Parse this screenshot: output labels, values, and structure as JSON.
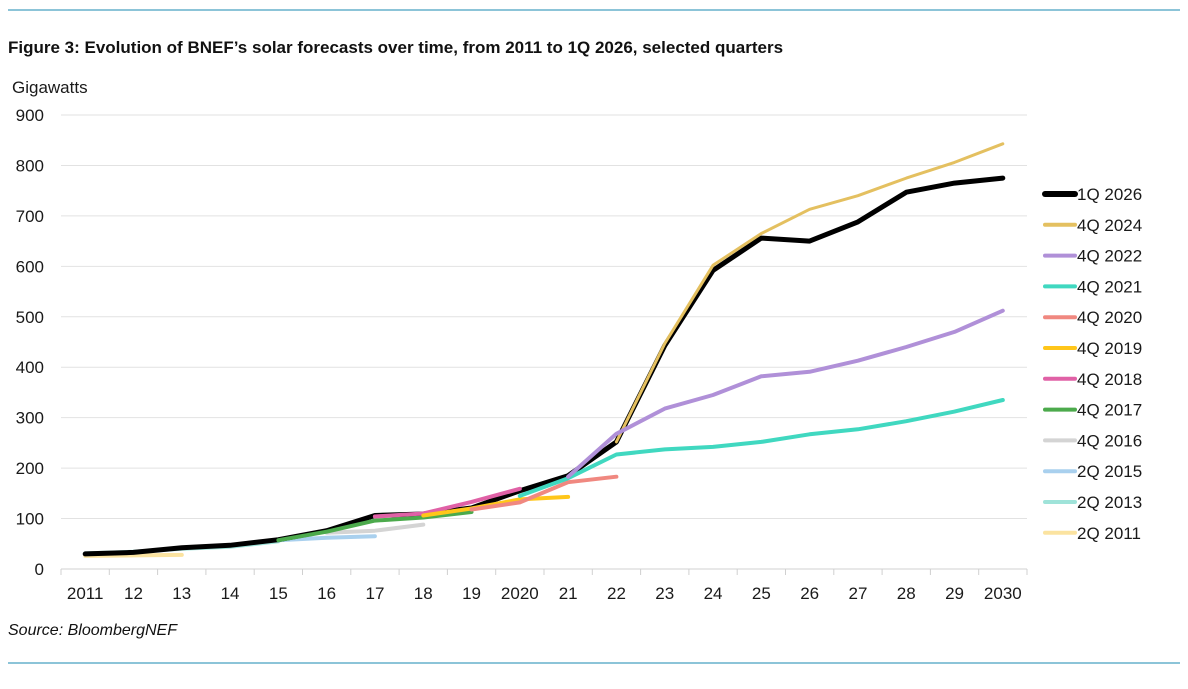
{
  "figure": {
    "title": "Figure 3:  Evolution of BNEF’s solar forecasts over time, from 2011 to 1Q 2026, selected quarters",
    "source": "Source: BloombergNEF"
  },
  "chart_data": {
    "type": "line",
    "title": "Figure 3:  Evolution of BNEF’s solar forecasts over time, from 2011 to 1Q 2026, selected quarters",
    "xlabel": "",
    "ylabel": "Gigawatts",
    "ylim": [
      0,
      900
    ],
    "yticks": [
      0,
      100,
      200,
      300,
      400,
      500,
      600,
      700,
      800,
      900
    ],
    "grid": true,
    "legend_position": "right",
    "categories": [
      "2011",
      "12",
      "13",
      "14",
      "15",
      "16",
      "17",
      "18",
      "19",
      "2020",
      "21",
      "22",
      "23",
      "24",
      "25",
      "26",
      "27",
      "28",
      "29",
      "2030"
    ],
    "series": [
      {
        "name": "2Q 2011",
        "color": "#fbe3a0",
        "width": 4,
        "values": [
          26,
          27,
          28,
          null,
          null,
          null,
          null,
          null,
          null,
          null,
          null,
          null,
          null,
          null,
          null,
          null,
          null,
          null,
          null,
          null
        ]
      },
      {
        "name": "2Q 2013",
        "color": "#9fe3d9",
        "width": 4,
        "values": [
          31,
          34,
          40,
          44,
          55,
          null,
          null,
          null,
          null,
          null,
          null,
          null,
          null,
          null,
          null,
          null,
          null,
          null,
          null,
          null
        ]
      },
      {
        "name": "2Q 2015",
        "color": "#a9d0ee",
        "width": 4,
        "values": [
          null,
          null,
          null,
          null,
          57,
          62,
          65,
          null,
          null,
          null,
          null,
          null,
          null,
          null,
          null,
          null,
          null,
          null,
          null,
          null
        ]
      },
      {
        "name": "4Q 2016",
        "color": "#d4d4d4",
        "width": 4,
        "values": [
          null,
          null,
          null,
          null,
          null,
          72,
          76,
          88,
          null,
          null,
          null,
          null,
          null,
          null,
          null,
          null,
          null,
          null,
          null,
          null
        ]
      },
      {
        "name": "4Q 2017",
        "color": "#4caa4c",
        "width": 4,
        "values": [
          null,
          null,
          null,
          null,
          57,
          74,
          96,
          102,
          113,
          null,
          null,
          null,
          null,
          null,
          null,
          null,
          null,
          null,
          null,
          null
        ]
      },
      {
        "name": "4Q 2018",
        "color": "#e061a6",
        "width": 4,
        "values": [
          null,
          null,
          null,
          null,
          null,
          null,
          104,
          110,
          133,
          159,
          null,
          null,
          null,
          null,
          null,
          null,
          null,
          null,
          null,
          null
        ]
      },
      {
        "name": "4Q 2019",
        "color": "#ffc61a",
        "width": 4,
        "values": [
          null,
          null,
          null,
          null,
          null,
          null,
          null,
          106,
          120,
          138,
          143,
          null,
          null,
          null,
          null,
          null,
          null,
          null,
          null,
          null
        ]
      },
      {
        "name": "4Q 2020",
        "color": "#f08880",
        "width": 4,
        "values": [
          null,
          null,
          null,
          null,
          null,
          null,
          null,
          null,
          118,
          132,
          172,
          183,
          null,
          null,
          null,
          null,
          null,
          null,
          null,
          null
        ]
      },
      {
        "name": "4Q 2021",
        "color": "#40d8c0",
        "width": 4,
        "values": [
          null,
          null,
          null,
          null,
          null,
          null,
          null,
          null,
          null,
          145,
          180,
          227,
          237,
          242,
          252,
          267,
          277,
          293,
          312,
          335
        ]
      },
      {
        "name": "4Q 2022",
        "color": "#b090d8",
        "width": 4,
        "values": [
          null,
          null,
          null,
          null,
          null,
          null,
          null,
          null,
          null,
          null,
          183,
          268,
          318,
          345,
          382,
          391,
          413,
          440,
          470,
          512
        ]
      },
      {
        "name": "4Q 2024",
        "color": "#e4c060",
        "width": 3,
        "values": [
          null,
          null,
          null,
          null,
          null,
          null,
          null,
          null,
          null,
          null,
          null,
          252,
          447,
          602,
          665,
          713,
          740,
          775,
          806,
          843
        ]
      },
      {
        "name": "1Q 2026",
        "color": "#000000",
        "width": 5,
        "values": [
          30,
          33,
          42,
          47,
          58,
          76,
          106,
          109,
          121,
          155,
          185,
          252,
          443,
          592,
          656,
          650,
          688,
          747,
          765,
          775
        ]
      }
    ],
    "draw_order": [
      "2Q 2011",
      "2Q 2013",
      "2Q 2015",
      "4Q 2016",
      "1Q 2026",
      "4Q 2024",
      "4Q 2017",
      "4Q 2018",
      "4Q 2019",
      "4Q 2020",
      "4Q 2021",
      "4Q 2022"
    ],
    "legend_order": [
      "1Q 2026",
      "4Q 2024",
      "4Q 2022",
      "4Q 2021",
      "4Q 2020",
      "4Q 2019",
      "4Q 2018",
      "4Q 2017",
      "4Q 2016",
      "2Q 2015",
      "2Q 2013",
      "2Q 2011"
    ]
  }
}
